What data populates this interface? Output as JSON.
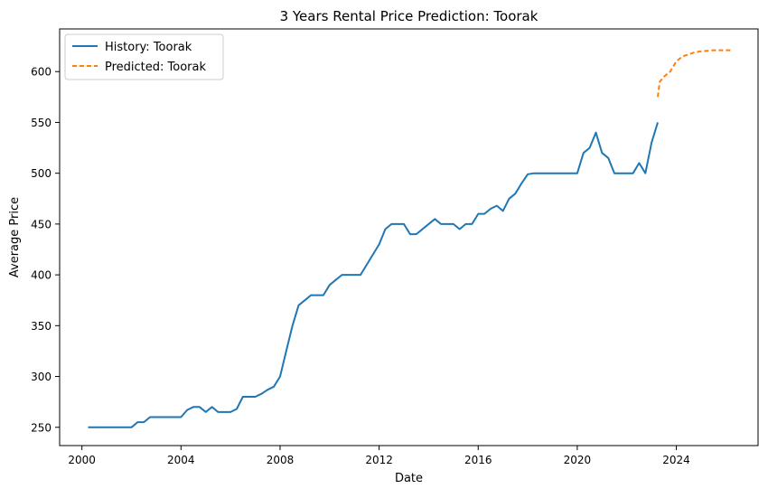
{
  "chart_data": {
    "type": "line",
    "title": "3 Years Rental Price Prediction: Toorak",
    "xlabel": "Date",
    "ylabel": "Average Price",
    "xlim": [
      1999.1,
      2027.3
    ],
    "ylim": [
      232,
      642
    ],
    "x_ticks": [
      2000,
      2004,
      2008,
      2012,
      2016,
      2020,
      2024
    ],
    "x_tick_labels": [
      "2000",
      "2004",
      "2008",
      "2012",
      "2016",
      "2020",
      "2024"
    ],
    "y_ticks": [
      250,
      300,
      350,
      400,
      450,
      500,
      550,
      600
    ],
    "y_tick_labels": [
      "250",
      "300",
      "350",
      "400",
      "450",
      "500",
      "550",
      "600"
    ],
    "grid": false,
    "legend_position": "top-left",
    "series": [
      {
        "name": "History: Toorak",
        "style": "solid",
        "color": "#1f77b4",
        "points": [
          [
            2000.25,
            250
          ],
          [
            2001.0,
            250
          ],
          [
            2001.5,
            250
          ],
          [
            2002.0,
            250
          ],
          [
            2002.25,
            255
          ],
          [
            2002.5,
            255
          ],
          [
            2002.75,
            260
          ],
          [
            2003.25,
            260
          ],
          [
            2004.0,
            260
          ],
          [
            2004.25,
            267
          ],
          [
            2004.5,
            270
          ],
          [
            2004.75,
            270
          ],
          [
            2005.0,
            265
          ],
          [
            2005.25,
            270
          ],
          [
            2005.5,
            265
          ],
          [
            2006.0,
            265
          ],
          [
            2006.25,
            268
          ],
          [
            2006.5,
            280
          ],
          [
            2007.0,
            280
          ],
          [
            2007.25,
            283
          ],
          [
            2007.5,
            287
          ],
          [
            2007.75,
            290
          ],
          [
            2008.0,
            300
          ],
          [
            2008.25,
            325
          ],
          [
            2008.5,
            350
          ],
          [
            2008.75,
            370
          ],
          [
            2009.0,
            375
          ],
          [
            2009.25,
            380
          ],
          [
            2009.75,
            380
          ],
          [
            2010.0,
            390
          ],
          [
            2010.25,
            395
          ],
          [
            2010.5,
            400
          ],
          [
            2011.25,
            400
          ],
          [
            2011.5,
            410
          ],
          [
            2012.0,
            430
          ],
          [
            2012.25,
            445
          ],
          [
            2012.5,
            450
          ],
          [
            2013.0,
            450
          ],
          [
            2013.25,
            440
          ],
          [
            2013.5,
            440
          ],
          [
            2014.25,
            455
          ],
          [
            2014.5,
            450
          ],
          [
            2015.0,
            450
          ],
          [
            2015.25,
            445
          ],
          [
            2015.5,
            450
          ],
          [
            2015.75,
            450
          ],
          [
            2016.0,
            460
          ],
          [
            2016.25,
            460
          ],
          [
            2016.5,
            465
          ],
          [
            2016.75,
            468
          ],
          [
            2017.0,
            463
          ],
          [
            2017.25,
            475
          ],
          [
            2017.5,
            480
          ],
          [
            2017.75,
            490
          ],
          [
            2018.0,
            499
          ],
          [
            2018.25,
            500
          ],
          [
            2019.0,
            500
          ],
          [
            2019.5,
            500
          ],
          [
            2020.0,
            500
          ],
          [
            2020.25,
            520
          ],
          [
            2020.5,
            525
          ],
          [
            2020.75,
            540
          ],
          [
            2021.0,
            520
          ],
          [
            2021.25,
            515
          ],
          [
            2021.5,
            500
          ],
          [
            2022.0,
            500
          ],
          [
            2022.25,
            500
          ],
          [
            2022.5,
            510
          ],
          [
            2022.75,
            500
          ],
          [
            2023.0,
            530
          ],
          [
            2023.25,
            550
          ]
        ]
      },
      {
        "name": "Predicted: Toorak",
        "style": "dashed",
        "color": "#ff7f0e",
        "points": [
          [
            2023.25,
            575
          ],
          [
            2023.33,
            590
          ],
          [
            2023.5,
            595
          ],
          [
            2023.75,
            600
          ],
          [
            2024.0,
            610
          ],
          [
            2024.25,
            615
          ],
          [
            2024.5,
            617
          ],
          [
            2024.75,
            619
          ],
          [
            2025.0,
            620
          ],
          [
            2025.25,
            620.5
          ],
          [
            2025.5,
            621
          ],
          [
            2025.75,
            621
          ],
          [
            2026.0,
            621
          ],
          [
            2026.25,
            621
          ]
        ]
      }
    ]
  }
}
